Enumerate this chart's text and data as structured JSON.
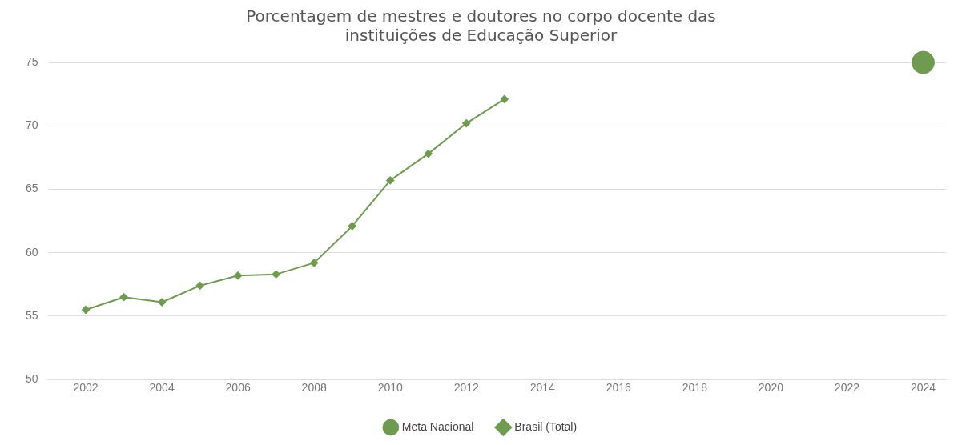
{
  "chart_data": {
    "type": "line",
    "title": [
      "Porcentagem de mestres e doutores no corpo docente das",
      "instituições de Educação Superior"
    ],
    "xlim": [
      2001,
      2024.6
    ],
    "xticks": [
      2002,
      2004,
      2006,
      2008,
      2010,
      2012,
      2014,
      2016,
      2018,
      2020,
      2022,
      2024
    ],
    "ylim": [
      50,
      75
    ],
    "yticks": [
      50,
      55,
      60,
      65,
      70,
      75
    ],
    "grid": "y",
    "legend": "bottom",
    "series": [
      {
        "name": "Meta Nacional",
        "type": "scatter",
        "marker": "circle",
        "color": "#6e9b4f",
        "x": [
          2024
        ],
        "values": [
          75
        ]
      },
      {
        "name": "Brasil (Total)",
        "type": "line",
        "marker": "diamond",
        "color": "#6e9b4f",
        "x": [
          2002,
          2003,
          2004,
          2005,
          2006,
          2007,
          2008,
          2009,
          2010,
          2011,
          2012,
          2013
        ],
        "values": [
          55.5,
          56.5,
          56.1,
          57.4,
          58.2,
          58.3,
          59.2,
          62.1,
          65.7,
          67.8,
          70.2,
          72.1
        ]
      }
    ]
  }
}
